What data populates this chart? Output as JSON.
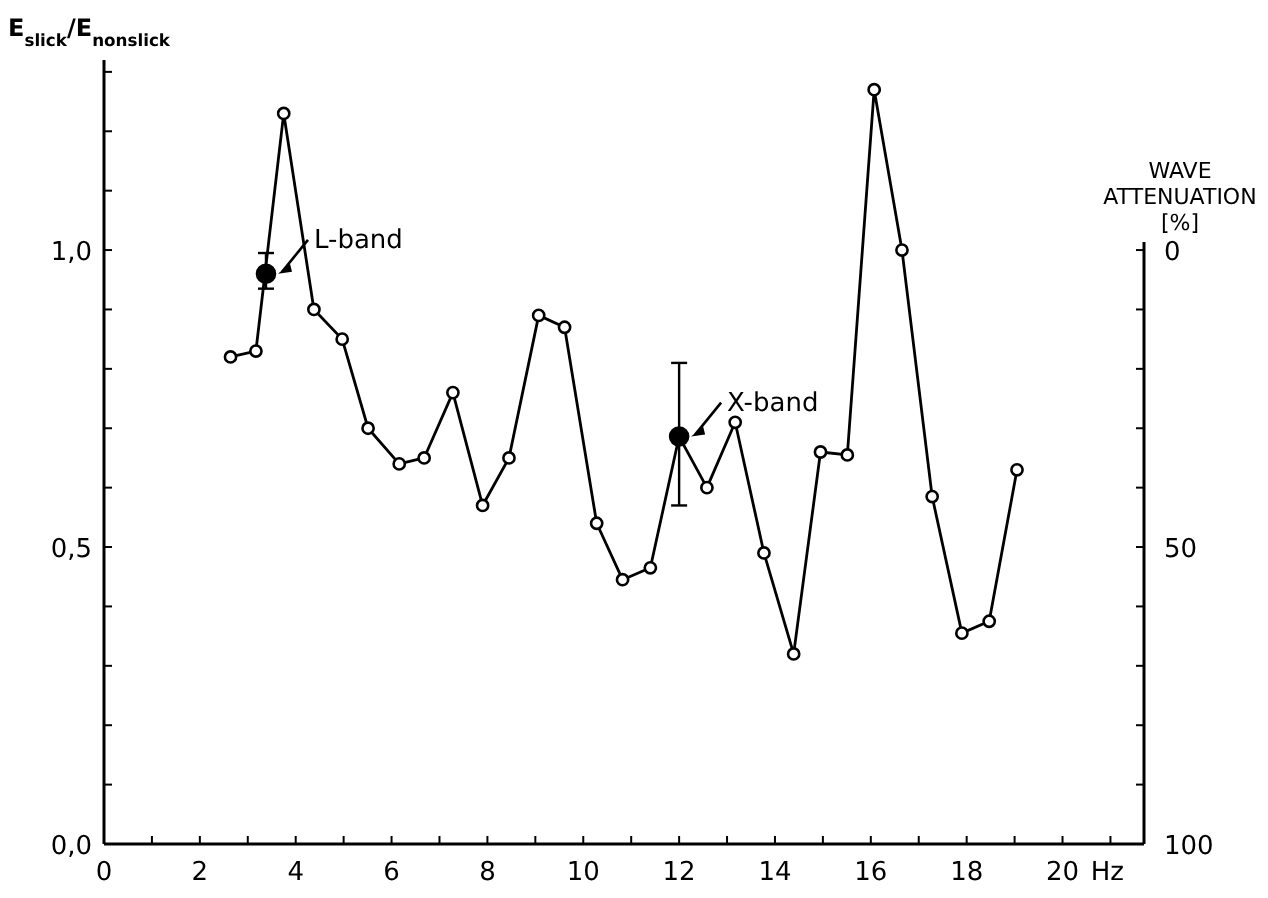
{
  "chart_data": {
    "type": "line",
    "ylabel": "E$_{slick}$/E$_{nonslick}$",
    "y2label": "WAVE ATTENUATION [%]",
    "xlabel": "Hz",
    "xlim": [
      0,
      21.7
    ],
    "xticks": [
      0,
      {
        "value": 1,
        "label": null
      },
      2,
      {
        "value": 3,
        "label": null
      },
      4,
      {
        "value": 5,
        "label": null
      },
      6,
      {
        "value": 7,
        "label": null
      },
      8,
      {
        "value": 9,
        "label": null
      },
      10,
      {
        "value": 11,
        "label": null
      },
      12,
      {
        "value": 13,
        "label": null
      },
      14,
      {
        "value": 15,
        "label": null
      },
      16,
      {
        "value": 17,
        "label": null
      },
      18,
      {
        "value": 19,
        "label": null
      },
      20,
      {
        "value": 21,
        "label": null
      }
    ],
    "ylim": [
      0,
      1.32
    ],
    "yticks": [
      {
        "value": 0,
        "label": "0,0"
      },
      {
        "value": 0.1,
        "label": null
      },
      {
        "value": 0.2,
        "label": null
      },
      {
        "value": 0.3,
        "label": null
      },
      {
        "value": 0.4,
        "label": null
      },
      {
        "value": 0.5,
        "label": "0,5"
      },
      {
        "value": 0.6,
        "label": null
      },
      {
        "value": 0.7,
        "label": null
      },
      {
        "value": 0.8,
        "label": null
      },
      {
        "value": 0.9,
        "label": null
      },
      {
        "value": 1.0,
        "label": "1,0"
      },
      {
        "value": 1.1,
        "label": null
      },
      {
        "value": 1.2,
        "label": null
      },
      {
        "value": 1.3,
        "label": null
      }
    ],
    "y2lim": [
      100,
      -32
    ],
    "y2ticks": [
      0,
      {
        "value": 10,
        "label": null
      },
      {
        "value": 20,
        "label": null
      },
      {
        "value": 30,
        "label": null
      },
      {
        "value": 40,
        "label": null
      },
      50,
      {
        "value": 60,
        "label": null
      },
      {
        "value": 70,
        "label": null
      },
      {
        "value": 80,
        "label": null
      },
      {
        "value": 90,
        "label": null
      },
      100
    ],
    "grid": false,
    "marker": "circle",
    "line_style": "solid",
    "series": [
      {
        "color": "#000000",
        "x": [
          2.64,
          3.17,
          3.75,
          4.38,
          4.97,
          5.51,
          6.16,
          6.68,
          7.28,
          7.9,
          8.45,
          9.07,
          9.61,
          10.28,
          10.82,
          11.4,
          12.0,
          12.58,
          13.17,
          13.77,
          14.39,
          14.95,
          15.51,
          16.07,
          16.65,
          17.28,
          17.9,
          18.47,
          19.05
        ],
        "values": [
          0.82,
          0.83,
          1.23,
          0.9,
          0.85,
          0.7,
          0.64,
          0.65,
          0.76,
          0.57,
          0.65,
          0.89,
          0.87,
          0.54,
          0.445,
          0.465,
          0.686,
          0.6,
          0.71,
          0.49,
          0.32,
          0.66,
          0.655,
          1.27,
          1.0,
          0.585,
          0.355,
          0.375,
          0.63
        ]
      },
      {
        "type": "scatter",
        "color": "#000000",
        "x": [
          3.38,
          12.0
        ],
        "values": [
          0.96,
          0.686
        ],
        "errors": [
          [
            0.935,
            0.995
          ],
          [
            0.57,
            0.81
          ]
        ]
      }
    ],
    "annotations": [
      {
        "text": "L-band",
        "x": 3.38,
        "y": 0.96
      },
      {
        "text": "X-band",
        "x": 12.0,
        "y": 0.686
      }
    ]
  }
}
